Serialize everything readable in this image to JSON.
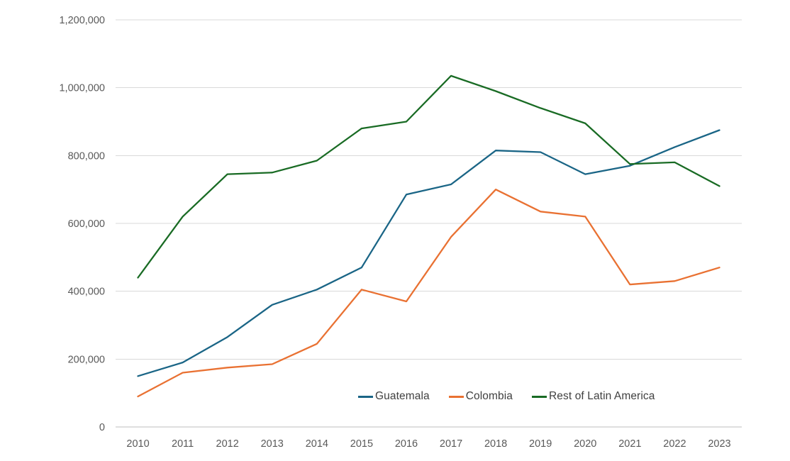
{
  "chart_data": {
    "type": "line",
    "x": [
      "2010",
      "2011",
      "2012",
      "2013",
      "2014",
      "2015",
      "2016",
      "2017",
      "2018",
      "2019",
      "2020",
      "2021",
      "2022",
      "2023"
    ],
    "series": [
      {
        "name": "Guatemala",
        "color": "#1A6586",
        "values": [
          150000,
          190000,
          265000,
          360000,
          405000,
          470000,
          685000,
          715000,
          815000,
          810000,
          745000,
          770000,
          825000,
          875000
        ]
      },
      {
        "name": "Colombia",
        "color": "#E97132",
        "values": [
          90000,
          160000,
          175000,
          185000,
          245000,
          405000,
          370000,
          560000,
          700000,
          635000,
          620000,
          420000,
          430000,
          470000
        ]
      },
      {
        "name": "Rest of Latin America",
        "color": "#196B24",
        "values": [
          440000,
          620000,
          745000,
          750000,
          785000,
          880000,
          900000,
          1035000,
          990000,
          940000,
          895000,
          775000,
          780000,
          710000
        ]
      }
    ],
    "title": "",
    "xlabel": "",
    "ylabel": "",
    "ylim": [
      0,
      1200000
    ],
    "ytick_interval": 200000,
    "ytick_labels": [
      "0",
      "200,000",
      "400,000",
      "600,000",
      "800,000",
      "1,000,000",
      "1,200,000"
    ],
    "grid": "horizontal",
    "legend_position": "inside-bottom-right",
    "colors": {
      "background": "#FFFFFF",
      "gridline": "#D9D9D9",
      "axis_line": "#BFBFBF",
      "tick_label": "#595959",
      "legend_text": "#404040"
    }
  }
}
